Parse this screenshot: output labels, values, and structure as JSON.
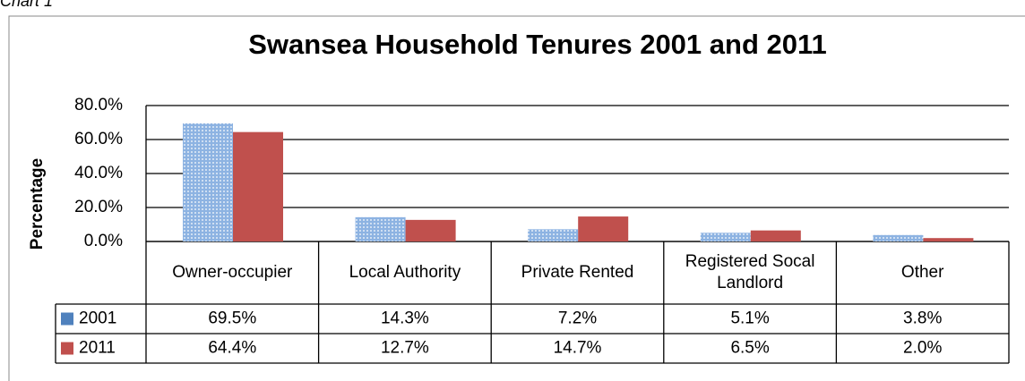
{
  "caption": "Chart 1",
  "chart_data": {
    "type": "bar",
    "title": "Swansea Household Tenures 2001 and 2011",
    "ylabel": "Percentage",
    "categories": [
      "Owner-occupier",
      "Local Authority",
      "Private Rented",
      "Registered Socal Landlord",
      "Other"
    ],
    "series": [
      {
        "name": "2001",
        "color": "#4f81bd",
        "values": [
          69.5,
          14.3,
          7.2,
          5.1,
          3.8
        ],
        "value_labels": [
          "69.5%",
          "14.3%",
          "7.2%",
          "5.1%",
          "3.8%"
        ]
      },
      {
        "name": "2011",
        "color": "#c0504d",
        "values": [
          64.4,
          12.7,
          14.7,
          6.5,
          2.0
        ],
        "value_labels": [
          "64.4%",
          "12.7%",
          "14.7%",
          "6.5%",
          "2.0%"
        ]
      }
    ],
    "ylim": [
      0,
      80
    ],
    "yticks": [
      {
        "value": 0,
        "label": "0.0%"
      },
      {
        "value": 20,
        "label": "20.0%"
      },
      {
        "value": 40,
        "label": "40.0%"
      },
      {
        "value": 60,
        "label": "60.0%"
      },
      {
        "value": 80,
        "label": "80.0%"
      }
    ],
    "grid": true
  }
}
